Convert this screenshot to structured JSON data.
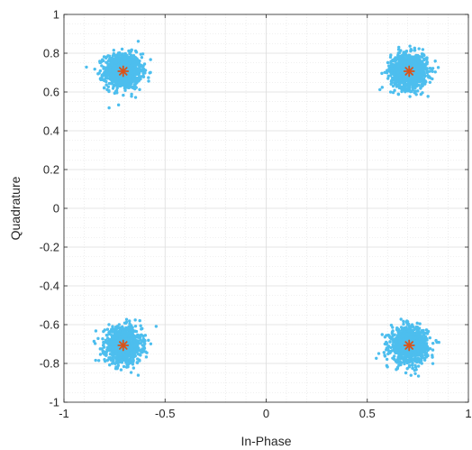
{
  "chart_data": {
    "type": "scatter",
    "title": "",
    "xlabel": "In-Phase",
    "ylabel": "Quadrature",
    "xlim": [
      -1,
      1
    ],
    "ylim": [
      -1,
      1
    ],
    "x_ticks": [
      -1,
      -0.5,
      0,
      0.5,
      1
    ],
    "x_tick_labels": [
      "-1",
      "-0.5",
      "0",
      "0.5",
      "1"
    ],
    "y_ticks": [
      -1,
      -0.8,
      -0.6,
      -0.4,
      -0.2,
      0,
      0.2,
      0.4,
      0.6,
      0.8,
      1
    ],
    "y_tick_labels": [
      "-1",
      "-0.8",
      "-0.6",
      "-0.4",
      "-0.2",
      "0",
      "0.2",
      "0.4",
      "0.6",
      "0.8",
      "1"
    ],
    "grid": true,
    "minor_grid": true,
    "series": [
      {
        "marker": "dot",
        "color": "#4DBEEE",
        "cluster_centers": [
          [
            -0.707,
            0.707
          ],
          [
            0.707,
            0.707
          ],
          [
            -0.707,
            -0.707
          ],
          [
            0.707,
            -0.707
          ]
        ],
        "cluster_spread_std": 0.045,
        "points_per_cluster": 1000
      },
      {
        "marker": "asterisk",
        "color": "#D95319",
        "x": [
          -0.707,
          0.707,
          -0.707,
          0.707
        ],
        "y": [
          0.707,
          0.707,
          -0.707,
          -0.707
        ]
      }
    ]
  }
}
